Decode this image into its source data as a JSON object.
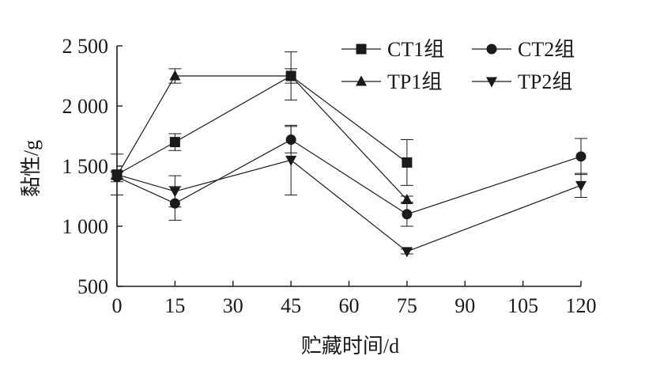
{
  "chart_data": {
    "type": "line",
    "xlabel": "贮藏时间/d",
    "ylabel": "黏性/g",
    "x_ticks": [
      "0",
      "15",
      "30",
      "45",
      "60",
      "75",
      "90",
      "105",
      "120"
    ],
    "y_ticks": [
      "500",
      "1 000",
      "1 500",
      "2 000",
      "2 500"
    ],
    "x_tick_values": [
      0,
      15,
      30,
      45,
      60,
      75,
      90,
      105,
      120
    ],
    "y_tick_values": [
      500,
      1000,
      1500,
      2000,
      2500
    ],
    "xlim": [
      0,
      120
    ],
    "ylim": [
      500,
      2500
    ],
    "grid": false,
    "legend_position": "top-right",
    "series": [
      {
        "name": "CT1组",
        "marker": "square",
        "x": [
          0,
          15,
          45,
          75
        ],
        "y": [
          1430,
          1700,
          2250,
          1530
        ],
        "err": [
          170,
          70,
          200,
          190
        ]
      },
      {
        "name": "CT2组",
        "marker": "circle",
        "x": [
          0,
          15,
          45,
          75,
          120
        ],
        "y": [
          1410,
          1190,
          1720,
          1100,
          1580
        ],
        "err": [
          40,
          140,
          110,
          100,
          150
        ]
      },
      {
        "name": "TP1组",
        "marker": "triangle-up",
        "x": [
          0,
          15,
          45,
          75
        ],
        "y": [
          1420,
          2250,
          2250,
          1220
        ],
        "err": [
          30,
          60,
          60,
          30
        ]
      },
      {
        "name": "TP2组",
        "marker": "triangle-down",
        "x": [
          0,
          15,
          45,
          75,
          120
        ],
        "y": [
          1430,
          1290,
          1550,
          790,
          1340
        ],
        "err": [
          30,
          130,
          290,
          20,
          100
        ]
      }
    ]
  }
}
